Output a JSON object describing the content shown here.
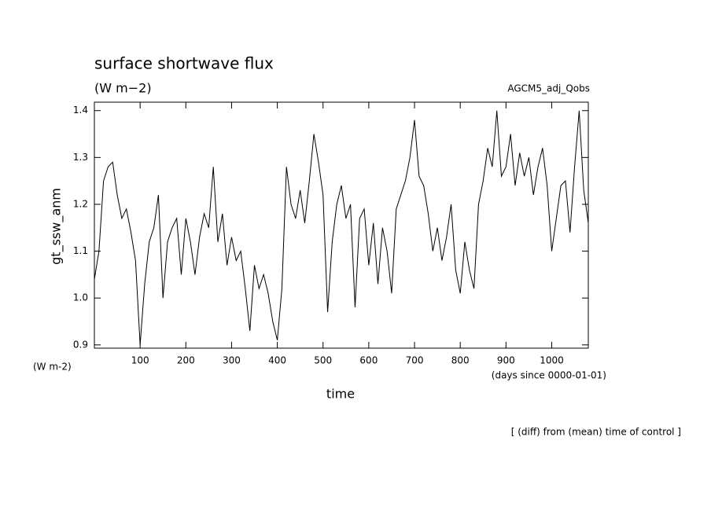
{
  "chart_data": {
    "type": "line",
    "title": "surface shortwave flux",
    "subtitle": "(W m−2)",
    "annotation_right": "AGCM5_adj_Qobs",
    "y_label": "gt_ssw_anm",
    "y_unit": "(W m-2)",
    "x_unit": "(days since 0000-01-01)",
    "x_label": "time",
    "footnote": "[ (diff) from (mean) time of control ]",
    "xlim": [
      0,
      1080
    ],
    "xticks": [
      100,
      200,
      300,
      400,
      500,
      600,
      700,
      800,
      900,
      1000
    ],
    "ylim": [
      0.893,
      1.418
    ],
    "yticks": [
      0.9,
      {
        "value": 1,
        "label": "1.0"
      },
      1.1,
      1.2,
      1.3,
      1.4
    ],
    "series": [
      {
        "color": "#000000",
        "x": [
          0,
          10,
          20,
          30,
          40,
          50,
          60,
          70,
          80,
          90,
          100,
          110,
          120,
          130,
          140,
          150,
          160,
          170,
          180,
          190,
          200,
          210,
          220,
          230,
          240,
          250,
          260,
          270,
          280,
          290,
          300,
          310,
          320,
          330,
          340,
          350,
          360,
          370,
          380,
          390,
          400,
          410,
          420,
          430,
          440,
          450,
          460,
          470,
          480,
          490,
          500,
          510,
          520,
          530,
          540,
          550,
          560,
          570,
          580,
          590,
          600,
          610,
          620,
          630,
          640,
          650,
          660,
          670,
          680,
          690,
          700,
          710,
          720,
          730,
          740,
          750,
          760,
          770,
          780,
          790,
          800,
          810,
          820,
          830,
          840,
          850,
          860,
          870,
          880,
          890,
          900,
          910,
          920,
          930,
          940,
          950,
          960,
          970,
          980,
          990,
          1000,
          1010,
          1020,
          1030,
          1040,
          1050,
          1060,
          1070,
          1080
        ],
        "values": [
          1.04,
          1.1,
          1.25,
          1.28,
          1.29,
          1.22,
          1.17,
          1.19,
          1.14,
          1.08,
          0.9,
          1.03,
          1.12,
          1.15,
          1.22,
          1.0,
          1.12,
          1.15,
          1.17,
          1.05,
          1.17,
          1.12,
          1.05,
          1.13,
          1.18,
          1.15,
          1.28,
          1.12,
          1.18,
          1.07,
          1.13,
          1.08,
          1.1,
          1.02,
          0.93,
          1.07,
          1.02,
          1.05,
          1.01,
          0.95,
          0.91,
          1.02,
          1.28,
          1.2,
          1.17,
          1.23,
          1.16,
          1.25,
          1.35,
          1.29,
          1.22,
          0.97,
          1.12,
          1.2,
          1.24,
          1.17,
          1.2,
          0.98,
          1.17,
          1.19,
          1.07,
          1.16,
          1.03,
          1.15,
          1.1,
          1.01,
          1.19,
          1.22,
          1.25,
          1.3,
          1.38,
          1.26,
          1.24,
          1.18,
          1.1,
          1.15,
          1.08,
          1.13,
          1.2,
          1.06,
          1.01,
          1.12,
          1.06,
          1.02,
          1.2,
          1.25,
          1.32,
          1.28,
          1.4,
          1.26,
          1.28,
          1.35,
          1.24,
          1.31,
          1.26,
          1.3,
          1.22,
          1.28,
          1.32,
          1.24,
          1.1,
          1.17,
          1.24,
          1.25,
          1.14,
          1.28,
          1.4,
          1.23,
          1.16
        ]
      }
    ]
  }
}
